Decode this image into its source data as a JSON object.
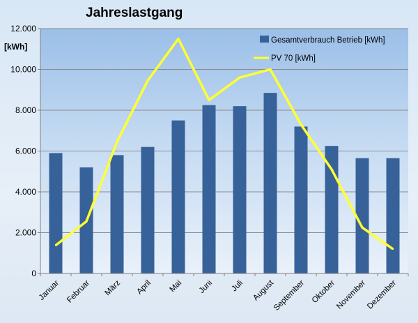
{
  "chart_data": {
    "type": "bar",
    "title": "Jahreslastgang",
    "ylabel": "[kWh]",
    "xlabel": "",
    "ylim": [
      0,
      12000
    ],
    "yticks": [
      0,
      2000,
      4000,
      6000,
      8000,
      10000,
      12000
    ],
    "ytick_labels": [
      "0",
      "2.000",
      "4.000",
      "6.000",
      "8.000",
      "10.000",
      "12.000"
    ],
    "categories": [
      "Januar",
      "Februar",
      "März",
      "April",
      "Mai",
      "Juni",
      "Juli",
      "August",
      "September",
      "Oktober",
      "November",
      "Dezember"
    ],
    "grid": true,
    "legend_position": "top-right",
    "series": [
      {
        "name": "Gesamtverbrauch Betrieb [kWh]",
        "type": "bar",
        "color": "#376199",
        "values": [
          5900,
          5200,
          5800,
          6200,
          7500,
          8250,
          8200,
          8850,
          7200,
          6250,
          5650,
          5650
        ]
      },
      {
        "name": "PV 70  [kWh]",
        "type": "line",
        "color": "#ffff33",
        "values": [
          1380,
          2550,
          6450,
          9450,
          11500,
          8500,
          9600,
          10000,
          7300,
          5100,
          2250,
          1200
        ]
      }
    ]
  }
}
